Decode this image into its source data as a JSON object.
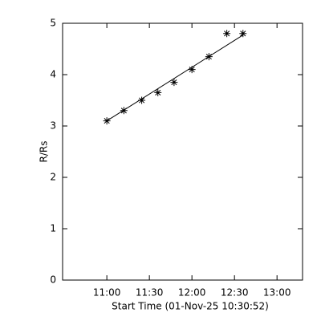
{
  "chart_data": {
    "type": "scatter",
    "x_label": "Start Time (01-Nov-25 10:30:52)",
    "y_label": "R/Rs",
    "x": [
      11.0,
      11.2,
      11.41,
      11.6,
      11.79,
      12.0,
      12.2,
      12.41,
      12.6
    ],
    "values": [
      3.1,
      3.3,
      3.5,
      3.65,
      3.85,
      4.1,
      4.35,
      4.8,
      4.8
    ],
    "marker": "asterisk",
    "color": "#000000",
    "fit_line": {
      "x": [
        11.0,
        12.6
      ],
      "values": [
        3.1,
        4.77
      ]
    },
    "xlim": [
      10.48,
      13.3
    ],
    "xticks": [
      {
        "value": 11.0,
        "label": "11:00"
      },
      {
        "value": 11.5,
        "label": "11:30"
      },
      {
        "value": 12.0,
        "label": "12:00"
      },
      {
        "value": 12.5,
        "label": "12:30"
      },
      {
        "value": 13.0,
        "label": "13:00"
      }
    ],
    "ylim": [
      0,
      5
    ],
    "yticks": [
      0,
      1,
      2,
      3,
      4,
      5
    ]
  }
}
